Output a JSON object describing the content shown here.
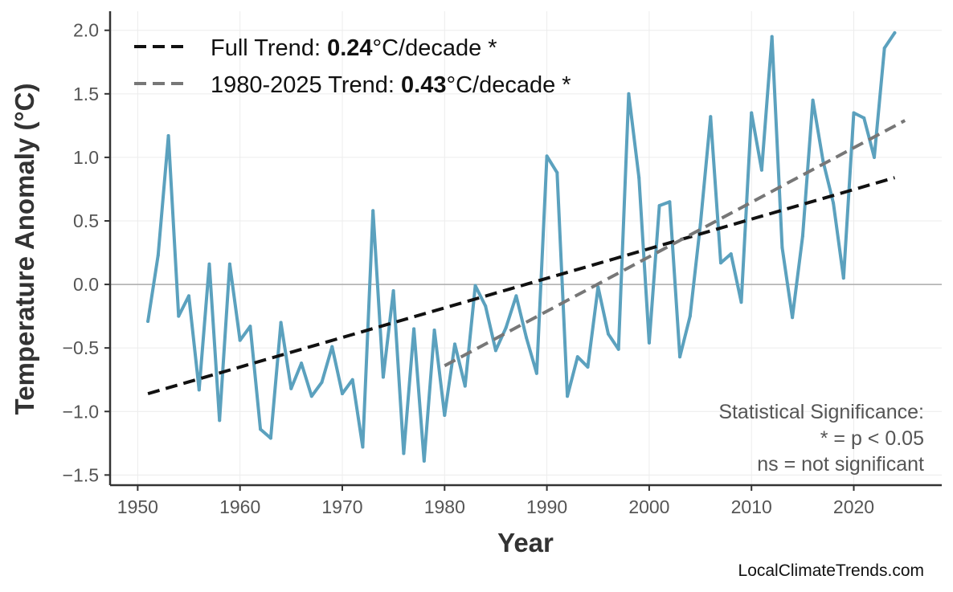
{
  "chart_data": {
    "type": "line",
    "xlabel": "Year",
    "ylabel": "Temperature Anomaly (°C)",
    "xlim": [
      1947.3,
      2028.6
    ],
    "ylim": [
      -1.58,
      2.15
    ],
    "xticks": [
      1950,
      1960,
      1970,
      1980,
      1990,
      2000,
      2010,
      2020
    ],
    "yticks": [
      2.0,
      1.5,
      1.0,
      0.5,
      0.0,
      -0.5,
      -1.0,
      -1.5
    ],
    "ytick_labels": [
      "2.0",
      "1.5",
      "1.0",
      "0.5",
      "0.0",
      "−0.5",
      "−1.0",
      "−1.5"
    ],
    "grid": true,
    "zero_line": true,
    "legend_position": "top-left",
    "series": [
      {
        "color": "#5ba1be",
        "x": [
          1951,
          1952,
          1953,
          1954,
          1955,
          1956,
          1957,
          1958,
          1959,
          1960,
          1961,
          1962,
          1963,
          1964,
          1965,
          1966,
          1967,
          1968,
          1969,
          1970,
          1971,
          1972,
          1973,
          1974,
          1975,
          1976,
          1977,
          1978,
          1979,
          1980,
          1981,
          1982,
          1983,
          1984,
          1985,
          1986,
          1987,
          1988,
          1989,
          1990,
          1991,
          1992,
          1993,
          1994,
          1995,
          1996,
          1997,
          1998,
          1999,
          2000,
          2001,
          2002,
          2003,
          2004,
          2005,
          2006,
          2007,
          2008,
          2009,
          2010,
          2011,
          2012,
          2013,
          2014,
          2015,
          2016,
          2017,
          2018,
          2019,
          2020,
          2021,
          2022,
          2023,
          2024
        ],
        "y": [
          -0.29,
          0.23,
          1.17,
          -0.25,
          -0.09,
          -0.83,
          0.16,
          -1.07,
          0.16,
          -0.44,
          -0.33,
          -1.14,
          -1.21,
          -0.3,
          -0.82,
          -0.62,
          -0.88,
          -0.77,
          -0.49,
          -0.86,
          -0.75,
          -1.28,
          0.58,
          -0.73,
          -0.05,
          -1.33,
          -0.35,
          -1.39,
          -0.36,
          -1.03,
          -0.47,
          -0.8,
          -0.01,
          -0.17,
          -0.52,
          -0.34,
          -0.09,
          -0.42,
          -0.7,
          1.01,
          0.88,
          -0.88,
          -0.57,
          -0.65,
          -0.02,
          -0.39,
          -0.51,
          1.5,
          0.84,
          -0.46,
          0.62,
          0.65,
          -0.57,
          -0.25,
          0.47,
          1.32,
          0.17,
          0.24,
          -0.14,
          1.35,
          0.9,
          1.95,
          0.29,
          -0.26,
          0.38,
          1.45,
          0.97,
          0.64,
          0.05,
          1.35,
          1.31,
          1.0,
          1.86,
          1.98
        ]
      }
    ],
    "trends": [
      {
        "name": "Full Trend: ",
        "rate": "0.24",
        "suffix": "°C/decade *",
        "color": "#111111",
        "x": [
          1951,
          2024
        ],
        "y": [
          -0.86,
          0.84
        ]
      },
      {
        "name": "1980-2025 Trend: ",
        "rate": "0.43",
        "suffix": "°C/decade *",
        "color": "#777777",
        "x": [
          1980,
          2025
        ],
        "y": [
          -0.64,
          1.29
        ]
      }
    ],
    "annotation": {
      "line1": "Statistical Significance:",
      "line2": "* = p < 0.05",
      "line3": "ns = not significant"
    },
    "credit": "LocalClimateTrends.com"
  }
}
